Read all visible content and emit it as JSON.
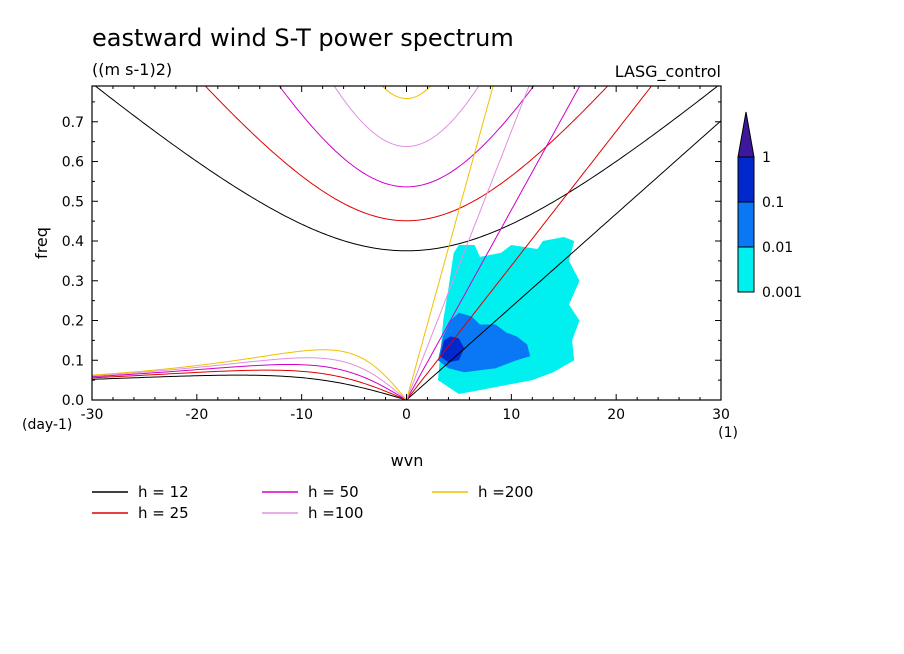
{
  "chart_data": {
    "type": "contour",
    "title": "eastward wind S-T power spectrum",
    "subtitle": "((m s-1)2)",
    "source_label": "LASG_control",
    "xlabel": "wvn",
    "ylabel": "freq",
    "x_unit": "(1)",
    "y_unit": "(day-1)",
    "xlim": [
      -30,
      30
    ],
    "ylim": [
      0,
      0.79
    ],
    "x_ticks": [
      "-30",
      "-20",
      "-10",
      "0",
      "10",
      "20",
      "30"
    ],
    "x_tick_values": [
      -30,
      -20,
      -10,
      0,
      10,
      20,
      30
    ],
    "y_ticks": [
      "0.0",
      "0.1",
      "0.2",
      "0.3",
      "0.4",
      "0.5",
      "0.6",
      "0.7"
    ],
    "y_tick_values": [
      0,
      0.1,
      0.2,
      0.3,
      0.4,
      0.5,
      0.6,
      0.7
    ],
    "colorbar": {
      "levels": [
        "0.001",
        "0.01",
        "0.1",
        "1"
      ],
      "colors": [
        "#00f0f0",
        "#0a78f5",
        "#0028cc",
        "#3c189c"
      ]
    },
    "dispersion_curves": [
      {
        "name": "h = 12",
        "h": 12,
        "color": "#000000"
      },
      {
        "name": "h = 25",
        "h": 25,
        "color": "#e00000"
      },
      {
        "name": "h = 50",
        "h": 50,
        "color": "#d000c8"
      },
      {
        "name": "h =100",
        "h": 100,
        "color": "#e090e0"
      },
      {
        "name": "h =200",
        "h": 200,
        "color": "#f0c000"
      }
    ],
    "spectrum_regions": [
      {
        "level": "0.001",
        "points": [
          [
            3,
            0.05
          ],
          [
            3.5,
            0.2
          ],
          [
            4,
            0.28
          ],
          [
            4.5,
            0.37
          ],
          [
            5,
            0.39
          ],
          [
            6.5,
            0.39
          ],
          [
            7,
            0.36
          ],
          [
            9,
            0.37
          ],
          [
            10,
            0.39
          ],
          [
            12.5,
            0.38
          ],
          [
            13,
            0.4
          ],
          [
            15,
            0.41
          ],
          [
            16,
            0.4
          ],
          [
            15.5,
            0.35
          ],
          [
            16.5,
            0.3
          ],
          [
            15.5,
            0.24
          ],
          [
            16.5,
            0.2
          ],
          [
            15.8,
            0.15
          ],
          [
            16,
            0.1
          ],
          [
            14,
            0.07
          ],
          [
            12,
            0.05
          ],
          [
            10,
            0.04
          ],
          [
            7,
            0.025
          ],
          [
            5,
            0.015
          ]
        ]
      },
      {
        "level": "0.01",
        "points": [
          [
            3,
            0.1
          ],
          [
            3.5,
            0.16
          ],
          [
            4.2,
            0.2
          ],
          [
            5,
            0.22
          ],
          [
            6.2,
            0.21
          ],
          [
            7,
            0.19
          ],
          [
            8.5,
            0.19
          ],
          [
            9.5,
            0.17
          ],
          [
            10.5,
            0.16
          ],
          [
            11.5,
            0.14
          ],
          [
            11.8,
            0.11
          ],
          [
            10.5,
            0.1
          ],
          [
            9.5,
            0.09
          ],
          [
            8.5,
            0.08
          ],
          [
            7,
            0.075
          ],
          [
            5.5,
            0.07
          ],
          [
            4,
            0.08
          ]
        ]
      },
      {
        "level": "0.1",
        "points": [
          [
            3.2,
            0.11
          ],
          [
            3.6,
            0.15
          ],
          [
            4.2,
            0.16
          ],
          [
            5,
            0.155
          ],
          [
            5.5,
            0.13
          ],
          [
            5,
            0.1
          ],
          [
            4,
            0.095
          ]
        ]
      }
    ]
  }
}
